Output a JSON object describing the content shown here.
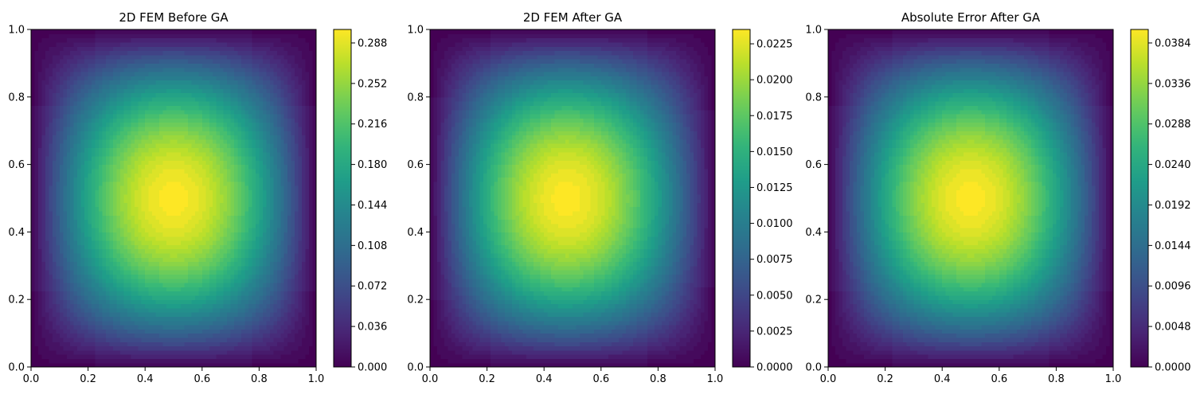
{
  "chart_data": [
    {
      "type": "heatmap",
      "title": "2D FEM Before GA",
      "xlabel": "",
      "ylabel": "",
      "xlim": [
        0,
        1
      ],
      "ylim": [
        0,
        1
      ],
      "x_ticks": [
        "0.0",
        "0.2",
        "0.4",
        "0.6",
        "0.8",
        "1.0"
      ],
      "y_ticks": [
        "0.0",
        "0.2",
        "0.4",
        "0.6",
        "0.8",
        "1.0"
      ],
      "colormap": "viridis",
      "colorbar": {
        "min": 0.0,
        "max": 0.3,
        "ticks": [
          "0.000",
          "0.036",
          "0.072",
          "0.108",
          "0.144",
          "0.180",
          "0.216",
          "0.252",
          "0.288"
        ]
      },
      "field": {
        "peak_x": 0.5,
        "peak_y": 0.5,
        "peak_value": 0.3,
        "boundary_value": 0.0
      },
      "grid": false
    },
    {
      "type": "heatmap",
      "title": "2D FEM After GA",
      "xlabel": "",
      "ylabel": "",
      "xlim": [
        0,
        1
      ],
      "ylim": [
        0,
        1
      ],
      "x_ticks": [
        "0.0",
        "0.2",
        "0.4",
        "0.6",
        "0.8",
        "1.0"
      ],
      "y_ticks": [
        "0.0",
        "0.2",
        "0.4",
        "0.6",
        "0.8",
        "1.0"
      ],
      "colormap": "viridis",
      "colorbar": {
        "min": 0.0,
        "max": 0.0235,
        "ticks": [
          "0.0000",
          "0.0025",
          "0.0050",
          "0.0075",
          "0.0100",
          "0.0125",
          "0.0150",
          "0.0175",
          "0.0200",
          "0.0225"
        ]
      },
      "field": {
        "peak_x": 0.48,
        "peak_y": 0.5,
        "peak_value": 0.0235,
        "boundary_value": 0.0
      },
      "grid": false
    },
    {
      "type": "heatmap",
      "title": "Absolute Error After GA",
      "xlabel": "",
      "ylabel": "",
      "xlim": [
        0,
        1
      ],
      "ylim": [
        0,
        1
      ],
      "x_ticks": [
        "0.0",
        "0.2",
        "0.4",
        "0.6",
        "0.8",
        "1.0"
      ],
      "y_ticks": [
        "0.0",
        "0.2",
        "0.4",
        "0.6",
        "0.8",
        "1.0"
      ],
      "colormap": "viridis",
      "colorbar": {
        "min": 0.0,
        "max": 0.04,
        "ticks": [
          "0.0000",
          "0.0048",
          "0.0096",
          "0.0144",
          "0.0192",
          "0.0240",
          "0.0288",
          "0.0336",
          "0.0384"
        ]
      },
      "field": {
        "peak_x": 0.5,
        "peak_y": 0.5,
        "peak_value": 0.04,
        "boundary_value": 0.0
      },
      "grid": false
    }
  ]
}
